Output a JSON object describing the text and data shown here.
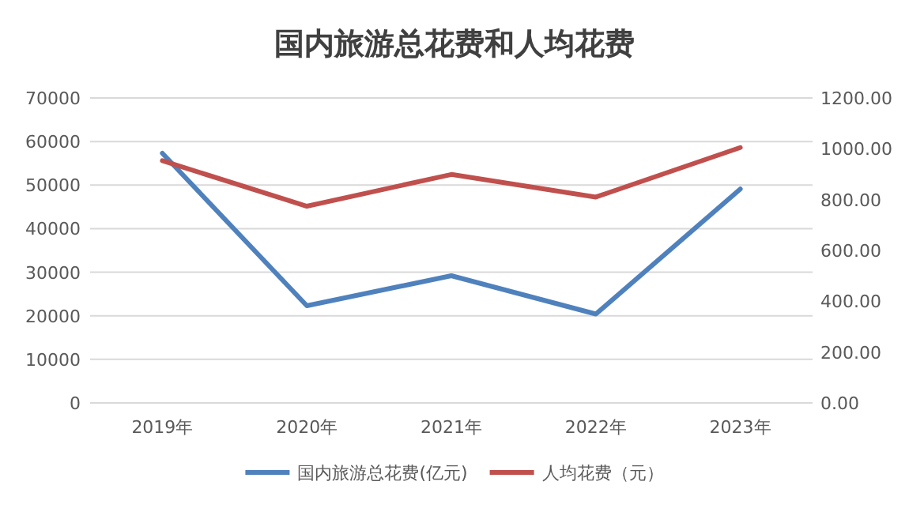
{
  "chart_data": {
    "type": "line",
    "title": "国内旅游总花费和人均花费",
    "categories": [
      "2019年",
      "2020年",
      "2021年",
      "2022年",
      "2023年"
    ],
    "series": [
      {
        "name": "国内旅游总花费(亿元)",
        "color": "#4f81bd",
        "values": [
          57300,
          22300,
          29200,
          20400,
          49100
        ]
      },
      {
        "name": "人均花费（元）",
        "color": "#c0504d",
        "axis": "y2",
        "values": [
          953,
          774,
          899,
          810,
          1005
        ]
      }
    ],
    "ylim": [
      0,
      70000
    ],
    "yticks": [
      0,
      10000,
      20000,
      30000,
      40000,
      50000,
      60000,
      70000
    ],
    "y2lim": [
      0,
      1200
    ],
    "y2ticks": [
      {
        "value": 0,
        "label": "0.00"
      },
      {
        "value": 200,
        "label": "200.00"
      },
      {
        "value": 400,
        "label": "400.00"
      },
      {
        "value": 600,
        "label": "600.00"
      },
      {
        "value": 800,
        "label": "800.00"
      },
      {
        "value": 1000,
        "label": "1000.00"
      },
      {
        "value": 1200,
        "label": "1200.00"
      }
    ],
    "grid": "y",
    "legend": "bottom",
    "marker": "none",
    "line_style": "solid"
  }
}
